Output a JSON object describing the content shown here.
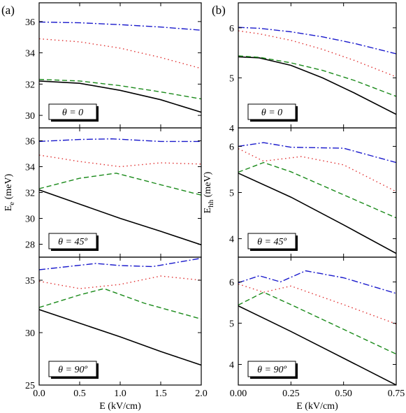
{
  "chart_data": [
    {
      "type": "line",
      "panel_tag": "(a)",
      "subplot": "top",
      "theta_label": "θ = 0",
      "xlim": [
        0,
        2.0
      ],
      "ylim": [
        29.2,
        37.2
      ],
      "yticks": [
        "30",
        "32",
        "34",
        "36"
      ],
      "ytick_values": [
        30,
        32,
        34,
        36
      ],
      "series": [
        {
          "color": "#000000",
          "dash": "solid",
          "x": [
            0,
            0.5,
            1.0,
            1.5,
            2.0
          ],
          "y": [
            32.2,
            32.05,
            31.6,
            31.0,
            30.2
          ]
        },
        {
          "color": "#1a8a1a",
          "dash": "dashed",
          "x": [
            0,
            0.5,
            1.0,
            1.5,
            2.0
          ],
          "y": [
            32.3,
            32.2,
            31.9,
            31.5,
            31.05
          ]
        },
        {
          "color": "#e03030",
          "dash": "dotted",
          "x": [
            0,
            0.5,
            1.0,
            1.5,
            2.0
          ],
          "y": [
            34.9,
            34.7,
            34.3,
            33.7,
            33.0
          ]
        },
        {
          "color": "#1a1acc",
          "dash": "dashdot",
          "x": [
            0,
            0.5,
            1.0,
            1.5,
            2.0
          ],
          "y": [
            35.97,
            35.92,
            35.8,
            35.65,
            35.45
          ]
        }
      ]
    },
    {
      "type": "line",
      "panel_tag": "",
      "subplot": "middle",
      "theta_label": "θ = 45º",
      "ylabel_main": "E",
      "ylabel_sub": "e",
      "ylabel_unit": " (meV)",
      "xlim": [
        0,
        2.0
      ],
      "ylim": [
        27.0,
        37.0
      ],
      "yticks": [
        "28",
        "30",
        "32",
        "34",
        "36"
      ],
      "ytick_values": [
        28,
        30,
        32,
        34,
        36
      ],
      "series": [
        {
          "color": "#000000",
          "dash": "solid",
          "x": [
            0,
            0.5,
            1.0,
            1.5,
            2.0
          ],
          "y": [
            32.2,
            31.1,
            30.0,
            29.0,
            27.95
          ]
        },
        {
          "color": "#1a8a1a",
          "dash": "dashed",
          "x": [
            0,
            0.5,
            0.95,
            1.5,
            2.0
          ],
          "y": [
            32.3,
            33.1,
            33.5,
            32.6,
            31.8
          ]
        },
        {
          "color": "#e03030",
          "dash": "dotted",
          "x": [
            0,
            0.5,
            1.0,
            1.5,
            2.0
          ],
          "y": [
            34.9,
            34.4,
            34.0,
            34.3,
            34.2
          ]
        },
        {
          "color": "#1a1acc",
          "dash": "dashdot",
          "x": [
            0,
            0.5,
            0.9,
            1.5,
            2.0
          ],
          "y": [
            35.95,
            36.1,
            36.15,
            35.95,
            35.95
          ]
        }
      ]
    },
    {
      "type": "line",
      "panel_tag": "",
      "subplot": "bottom",
      "theta_label": "θ = 90º",
      "xlabel": "E (kV/cm)",
      "xlim": [
        0,
        2.0
      ],
      "ylim": [
        25.0,
        37.2
      ],
      "xticks": [
        "0.0",
        "0.5",
        "1.0",
        "1.5",
        "2.0"
      ],
      "xtick_values": [
        0,
        0.5,
        1.0,
        1.5,
        2.0
      ],
      "yticks": [
        "25",
        "30",
        "35"
      ],
      "ytick_values": [
        25,
        30,
        35
      ],
      "series": [
        {
          "color": "#000000",
          "dash": "solid",
          "x": [
            0,
            0.5,
            1.0,
            1.5,
            2.0
          ],
          "y": [
            32.2,
            30.9,
            29.6,
            28.2,
            26.9
          ]
        },
        {
          "color": "#1a8a1a",
          "dash": "dashed",
          "x": [
            0,
            0.5,
            0.8,
            1.3,
            2.0
          ],
          "y": [
            32.4,
            33.6,
            34.2,
            32.8,
            31.3
          ]
        },
        {
          "color": "#e03030",
          "dash": "dotted",
          "x": [
            0,
            0.5,
            1.0,
            1.5,
            2.0
          ],
          "y": [
            34.9,
            34.2,
            34.6,
            35.4,
            35.0
          ]
        },
        {
          "color": "#1a1acc",
          "dash": "dashdot",
          "x": [
            0,
            0.7,
            1.0,
            1.4,
            2.0
          ],
          "y": [
            36.0,
            36.6,
            36.4,
            36.3,
            37.1
          ]
        }
      ]
    },
    {
      "type": "line",
      "panel_tag": "(b)",
      "subplot": "top",
      "theta_label": "θ = 0",
      "xlim": [
        0,
        0.75
      ],
      "ylim": [
        4.0,
        6.5
      ],
      "yticks": [
        "4",
        "5",
        "6"
      ],
      "ytick_values": [
        4,
        5,
        6
      ],
      "series": [
        {
          "color": "#000000",
          "dash": "solid",
          "x": [
            0,
            0.1,
            0.25,
            0.4,
            0.55,
            0.75
          ],
          "y": [
            5.42,
            5.4,
            5.25,
            5.0,
            4.7,
            4.27
          ]
        },
        {
          "color": "#1a8a1a",
          "dash": "dashed",
          "x": [
            0,
            0.1,
            0.25,
            0.4,
            0.55,
            0.75
          ],
          "y": [
            5.44,
            5.41,
            5.3,
            5.15,
            4.95,
            4.63
          ]
        },
        {
          "color": "#e03030",
          "dash": "dotted",
          "x": [
            0,
            0.1,
            0.25,
            0.4,
            0.55,
            0.75
          ],
          "y": [
            5.94,
            5.88,
            5.75,
            5.57,
            5.35,
            5.02
          ]
        },
        {
          "color": "#1a1acc",
          "dash": "dashdot",
          "x": [
            0,
            0.1,
            0.25,
            0.4,
            0.55,
            0.75
          ],
          "y": [
            6.01,
            5.99,
            5.92,
            5.82,
            5.69,
            5.48
          ]
        }
      ]
    },
    {
      "type": "line",
      "panel_tag": "",
      "subplot": "middle",
      "theta_label": "θ = 45º",
      "ylabel_main": "E",
      "ylabel_sub": "hh",
      "ylabel_unit": " (meV)",
      "xlim": [
        0,
        0.75
      ],
      "ylim": [
        3.6,
        6.4
      ],
      "yticks": [
        "4",
        "5",
        "6"
      ],
      "ytick_values": [
        4,
        5,
        6
      ],
      "series": [
        {
          "color": "#000000",
          "dash": "solid",
          "x": [
            0,
            0.25,
            0.5,
            0.75
          ],
          "y": [
            5.42,
            4.9,
            4.3,
            3.68
          ]
        },
        {
          "color": "#1a8a1a",
          "dash": "dashed",
          "x": [
            0,
            0.12,
            0.25,
            0.5,
            0.75
          ],
          "y": [
            5.44,
            5.65,
            5.45,
            4.95,
            4.45
          ]
        },
        {
          "color": "#e03030",
          "dash": "dotted",
          "x": [
            0,
            0.12,
            0.3,
            0.5,
            0.75
          ],
          "y": [
            5.95,
            5.68,
            5.78,
            5.6,
            5.02
          ]
        },
        {
          "color": "#1a1acc",
          "dash": "dashdot",
          "x": [
            0,
            0.12,
            0.25,
            0.5,
            0.75
          ],
          "y": [
            6.0,
            6.08,
            5.98,
            5.96,
            5.65
          ]
        }
      ]
    },
    {
      "type": "line",
      "panel_tag": "",
      "subplot": "bottom",
      "theta_label": "θ = 90º",
      "xlabel": "E (kV/cm)",
      "xlim": [
        0,
        0.75
      ],
      "ylim": [
        3.5,
        6.6
      ],
      "xticks": [
        "0.00",
        "0.25",
        "0.50",
        "0.75"
      ],
      "xtick_values": [
        0,
        0.25,
        0.5,
        0.75
      ],
      "yticks": [
        "4",
        "5",
        "6"
      ],
      "ytick_values": [
        4,
        5,
        6
      ],
      "series": [
        {
          "color": "#000000",
          "dash": "solid",
          "x": [
            0,
            0.25,
            0.5,
            0.75
          ],
          "y": [
            5.42,
            4.8,
            4.15,
            3.5
          ]
        },
        {
          "color": "#1a8a1a",
          "dash": "dashed",
          "x": [
            0,
            0.12,
            0.25,
            0.5,
            0.75
          ],
          "y": [
            5.44,
            5.75,
            5.45,
            4.85,
            4.25
          ]
        },
        {
          "color": "#e03030",
          "dash": "dotted",
          "x": [
            0,
            0.12,
            0.25,
            0.5,
            0.75
          ],
          "y": [
            5.95,
            5.75,
            5.9,
            5.45,
            4.98
          ]
        },
        {
          "color": "#1a1acc",
          "dash": "dashdot",
          "x": [
            0,
            0.1,
            0.2,
            0.32,
            0.5,
            0.75
          ],
          "y": [
            5.98,
            6.15,
            6.0,
            6.27,
            6.1,
            5.72
          ]
        }
      ]
    }
  ]
}
